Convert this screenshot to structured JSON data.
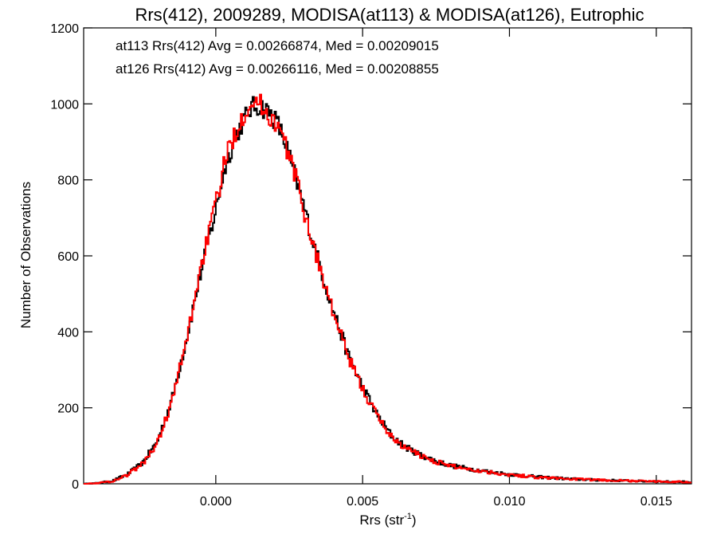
{
  "chart_data": {
    "type": "line",
    "title": "Rrs(412), 2009289, MODISA(at113) & MODISA(at126), Eutrophic",
    "xlabel": "Rrs (str",
    "xlabel_sup": "-1",
    "xlabel_close": ")",
    "ylabel": "Number of Observations",
    "xlim": [
      -0.0045,
      0.0162
    ],
    "ylim": [
      0,
      1200
    ],
    "x_ticks": [
      0.0,
      0.005,
      0.01,
      0.015
    ],
    "x_tick_labels": [
      "0.000",
      "0.005",
      "0.010",
      "0.015"
    ],
    "y_ticks": [
      0,
      200,
      400,
      600,
      800,
      1000,
      1200
    ],
    "y_tick_labels": [
      "0",
      "200",
      "400",
      "600",
      "800",
      "1000",
      "1200"
    ],
    "grid": false,
    "legend_placement": "top-left",
    "series": [
      {
        "legend": "at113 Rrs(412) Avg = 0.00266874, Med = 0.00209015",
        "color": "#000000",
        "x": [
          -0.0045,
          -0.004,
          -0.0035,
          -0.003,
          -0.0025,
          -0.002,
          -0.0015,
          -0.001,
          -0.0005,
          0.0,
          0.0003,
          0.0006,
          0.0009,
          0.0012,
          0.0015,
          0.0018,
          0.0021,
          0.0024,
          0.0027,
          0.003,
          0.0033,
          0.0036,
          0.0039,
          0.0042,
          0.0045,
          0.005,
          0.0055,
          0.006,
          0.0065,
          0.007,
          0.0075,
          0.008,
          0.009,
          0.01,
          0.011,
          0.012,
          0.013,
          0.014,
          0.015,
          0.0162
        ],
        "y": [
          0,
          2,
          8,
          25,
          55,
          110,
          220,
          380,
          560,
          720,
          830,
          900,
          950,
          990,
          995,
          980,
          950,
          890,
          810,
          730,
          640,
          560,
          480,
          410,
          340,
          255,
          180,
          125,
          95,
          75,
          60,
          48,
          35,
          25,
          18,
          13,
          10,
          8,
          6,
          5
        ]
      },
      {
        "legend": "at126 Rrs(412) Avg = 0.00266116, Med = 0.00208855",
        "color": "#ff0000",
        "x": [
          -0.0045,
          -0.004,
          -0.0035,
          -0.003,
          -0.0025,
          -0.002,
          -0.0015,
          -0.001,
          -0.0005,
          0.0,
          0.0003,
          0.0006,
          0.0009,
          0.0012,
          0.0015,
          0.0018,
          0.0021,
          0.0024,
          0.0027,
          0.003,
          0.0033,
          0.0036,
          0.0039,
          0.0042,
          0.0045,
          0.005,
          0.0055,
          0.006,
          0.0065,
          0.007,
          0.0075,
          0.008,
          0.009,
          0.01,
          0.011,
          0.012,
          0.013,
          0.014,
          0.015,
          0.0162
        ],
        "y": [
          0,
          2,
          7,
          24,
          52,
          105,
          215,
          375,
          575,
          735,
          845,
          915,
          965,
          1010,
          1000,
          970,
          945,
          885,
          815,
          720,
          635,
          555,
          475,
          405,
          335,
          250,
          178,
          122,
          92,
          74,
          58,
          47,
          34,
          24,
          17,
          13,
          10,
          8,
          6,
          5
        ]
      }
    ]
  }
}
